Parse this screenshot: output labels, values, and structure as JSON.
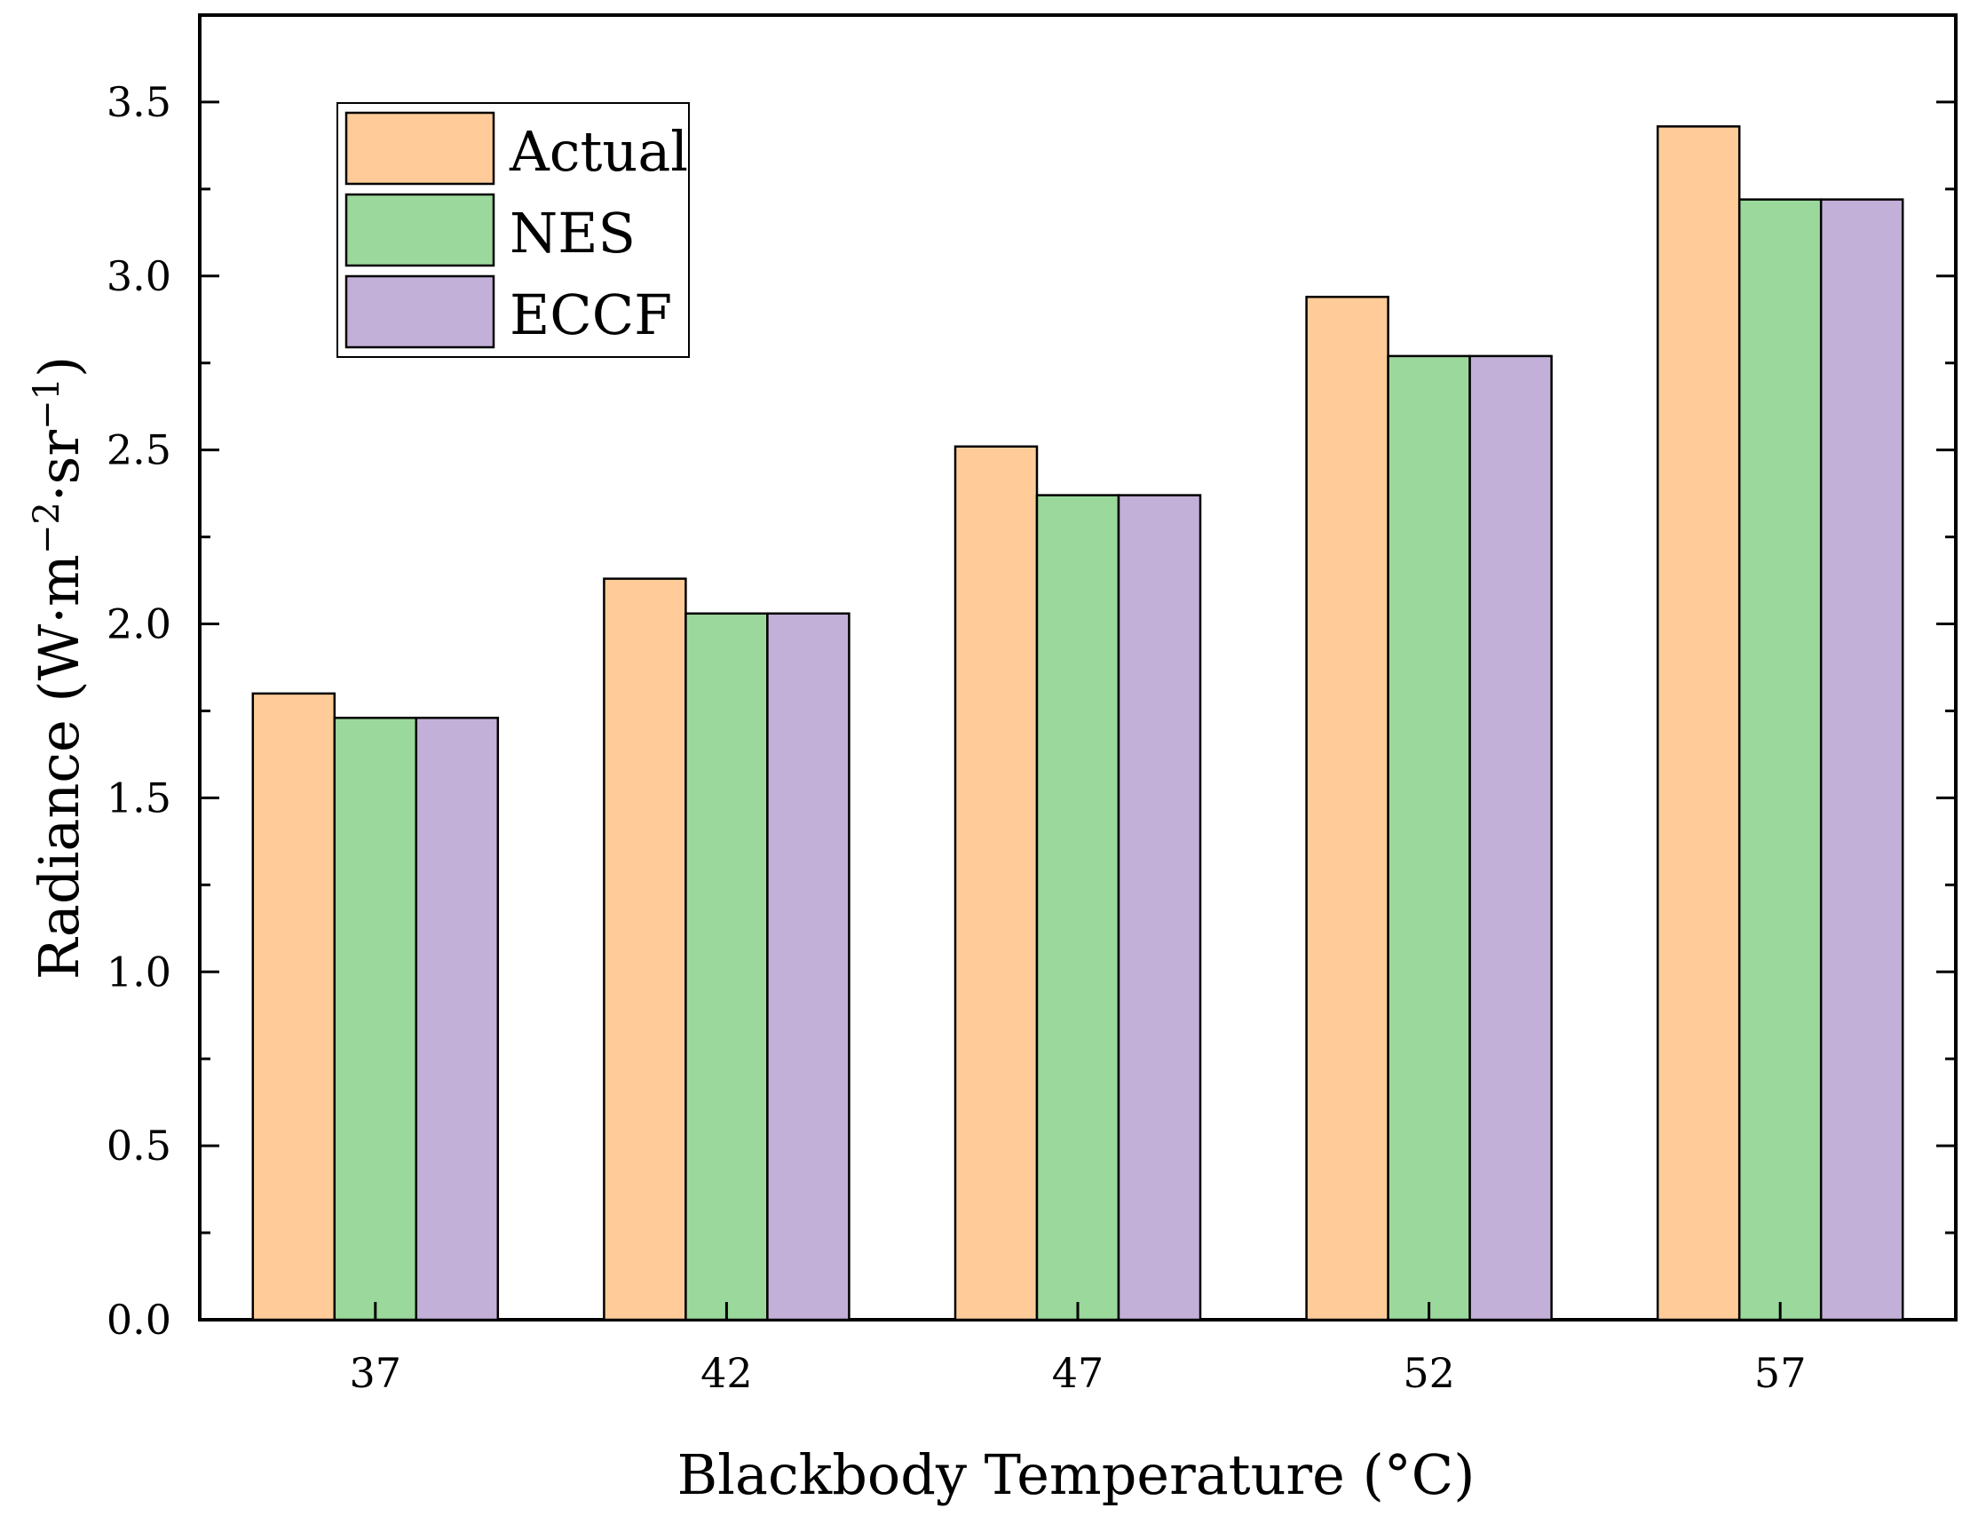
{
  "chart_data": {
    "type": "bar",
    "title": "",
    "xlabel": "Blackbody Temperature (°C)",
    "ylabel_main": "Radiance (W·m",
    "ylabel_sup1": "−2",
    "ylabel_mid": "·sr",
    "ylabel_sup2": "−1",
    "ylabel_end": ")",
    "categories": [
      "37",
      "42",
      "47",
      "52",
      "57"
    ],
    "series": [
      {
        "name": "Actual",
        "values": [
          1.8,
          2.13,
          2.51,
          2.94,
          3.43
        ],
        "color": "#FFCC99"
      },
      {
        "name": "NES",
        "values": [
          1.73,
          2.03,
          2.37,
          2.77,
          3.22
        ],
        "color": "#9BD89B"
      },
      {
        "name": "ECCF",
        "values": [
          1.73,
          2.03,
          2.37,
          2.77,
          3.22
        ],
        "color": "#C3B0D9"
      }
    ],
    "ylim": [
      0,
      3.75
    ],
    "yticks": [
      "0.0",
      "0.5",
      "1.0",
      "1.5",
      "2.0",
      "2.5",
      "3.0",
      "3.5"
    ],
    "legend_position": "top-left",
    "grid": false
  }
}
